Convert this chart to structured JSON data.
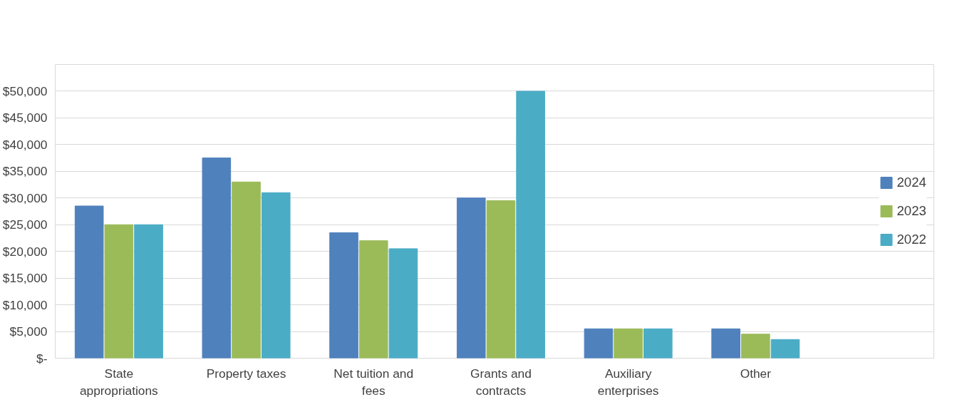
{
  "chart_data": {
    "type": "bar",
    "categories": [
      "State appropriations",
      "Property taxes",
      "Net tuition and fees",
      "Grants and contracts",
      "Auxiliary enterprises",
      "Other"
    ],
    "series": [
      {
        "name": "2024",
        "color": "#4f81bd",
        "values": [
          28500,
          37500,
          23500,
          30000,
          5500,
          5500
        ]
      },
      {
        "name": "2023",
        "color": "#9bbb59",
        "values": [
          25000,
          33000,
          22000,
          29500,
          5500,
          4500
        ]
      },
      {
        "name": "2022",
        "color": "#4bacc6",
        "values": [
          25000,
          31000,
          20500,
          50000,
          5500,
          3500
        ]
      }
    ],
    "ylim": [
      0,
      55000
    ],
    "yticks": [
      {
        "value": 0,
        "label": "$-"
      },
      {
        "value": 5000,
        "label": "$5,000"
      },
      {
        "value": 10000,
        "label": "$10,000"
      },
      {
        "value": 15000,
        "label": "$15,000"
      },
      {
        "value": 20000,
        "label": "$20,000"
      },
      {
        "value": 25000,
        "label": "$25,000"
      },
      {
        "value": 30000,
        "label": "$30,000"
      },
      {
        "value": 35000,
        "label": "$35,000"
      },
      {
        "value": 40000,
        "label": "$40,000"
      },
      {
        "value": 45000,
        "label": "$45,000"
      },
      {
        "value": 50000,
        "label": "$50,000"
      },
      {
        "value": 55000,
        "label": null
      }
    ],
    "grid": "y",
    "legend": "right"
  }
}
